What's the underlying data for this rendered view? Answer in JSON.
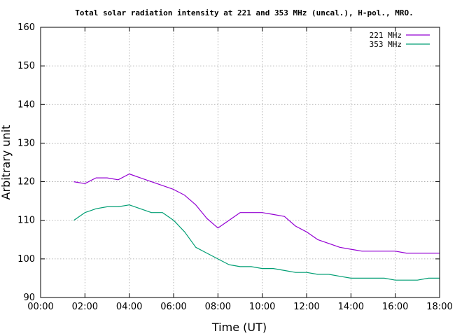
{
  "chart_data": {
    "type": "line",
    "title": "Total solar radiation intensity at 221 and 353 MHz (uncal.), H-pol., MRO.",
    "xlabel": "Time (UT)",
    "ylabel": "Arbitrary unit",
    "xlim": [
      0,
      18
    ],
    "ylim": [
      90,
      160
    ],
    "x_ticks": [
      0,
      2,
      4,
      6,
      8,
      10,
      12,
      14,
      16,
      18
    ],
    "x_tick_labels": [
      "00:00",
      "02:00",
      "04:00",
      "06:00",
      "08:00",
      "10:00",
      "12:00",
      "14:00",
      "16:00",
      "18:00"
    ],
    "y_ticks": [
      90,
      100,
      110,
      120,
      130,
      140,
      150,
      160
    ],
    "y_tick_labels": [
      "90",
      "100",
      "110",
      "120",
      "130",
      "140",
      "150",
      "160"
    ],
    "grid": true,
    "legend_position": "top-right",
    "series": [
      {
        "name": "221 MHz",
        "color": "#9400d3",
        "x": [
          1.5,
          2.0,
          2.5,
          3.0,
          3.5,
          4.0,
          4.5,
          5.0,
          5.5,
          6.0,
          6.5,
          7.0,
          7.5,
          8.0,
          8.5,
          9.0,
          9.5,
          10.0,
          10.5,
          11.0,
          11.5,
          12.0,
          12.5,
          13.0,
          13.5,
          14.0,
          14.5,
          15.0,
          15.5,
          16.0,
          16.5,
          17.0,
          17.5,
          18.0
        ],
        "y": [
          120,
          119.5,
          121,
          121,
          120.5,
          122,
          121,
          120,
          119,
          118,
          116.5,
          114,
          110.5,
          108,
          110,
          112,
          112,
          112,
          111.5,
          111,
          108.5,
          107,
          105,
          104,
          103,
          102.5,
          102,
          102,
          102,
          102,
          101.5,
          101.5,
          101.5,
          101.5
        ]
      },
      {
        "name": "353 MHz",
        "color": "#009e73",
        "x": [
          1.5,
          2.0,
          2.5,
          3.0,
          3.5,
          4.0,
          4.5,
          5.0,
          5.5,
          6.0,
          6.5,
          7.0,
          7.5,
          8.0,
          8.5,
          9.0,
          9.5,
          10.0,
          10.5,
          11.0,
          11.5,
          12.0,
          12.5,
          13.0,
          13.5,
          14.0,
          14.5,
          15.0,
          15.5,
          16.0,
          16.5,
          17.0,
          17.5,
          18.0
        ],
        "y": [
          110,
          112,
          113,
          113.5,
          113.5,
          114,
          113,
          112,
          112,
          110,
          107,
          103,
          101.5,
          100,
          98.5,
          98,
          98,
          97.5,
          97.5,
          97,
          96.5,
          96.5,
          96,
          96,
          95.5,
          95,
          95,
          95,
          95,
          94.5,
          94.5,
          94.5,
          95,
          95
        ]
      }
    ]
  }
}
